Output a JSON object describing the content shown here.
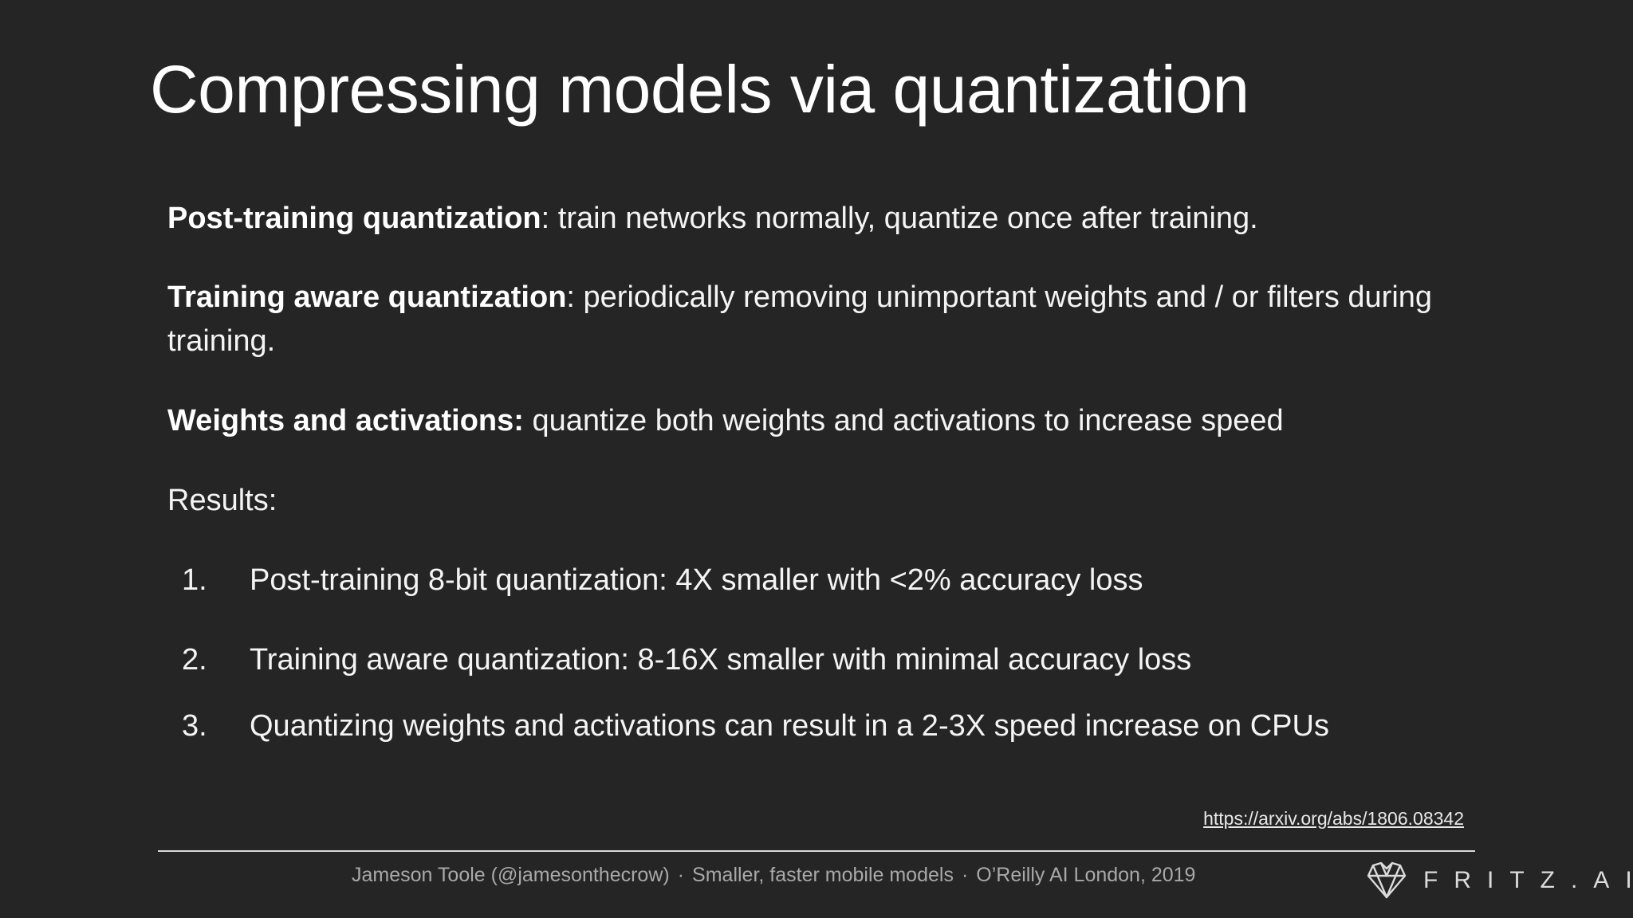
{
  "slide": {
    "title": "Compressing models via quantization",
    "paragraphs": [
      {
        "term": "Post-training quantization",
        "text": ": train networks normally, quantize once after training."
      },
      {
        "term": "Training aware quantization",
        "text": ": periodically removing unimportant weights and / or filters during training."
      },
      {
        "term": "Weights and activations:",
        "text": " quantize both weights and activations to increase speed"
      }
    ],
    "results_label": "Results:",
    "results": [
      {
        "num": "1.",
        "text": "Post-training 8-bit quantization: 4X smaller with <2% accuracy loss"
      },
      {
        "num": "2.",
        "text": "Training aware quantization: 8-16X smaller with minimal accuracy loss"
      },
      {
        "num": "3.",
        "text": "Quantizing weights and activations can result in a 2-3X speed increase on CPUs"
      }
    ],
    "link": "https://arxiv.org/abs/1806.08342"
  },
  "footer": {
    "author": "Jameson Toole (@jamesonthecrow)",
    "separator": "·",
    "talk": "Smaller, faster mobile models",
    "event": "O’Reilly AI London, 2019",
    "brand_text": "FRITZ.AI",
    "brand_icon": "fritz-heart-logo-icon"
  },
  "colors": {
    "background": "#252525",
    "title": "#ffffff",
    "body": "#f4f4f4",
    "footer": "#a9a9a9",
    "divider": "#d9d9d9"
  }
}
